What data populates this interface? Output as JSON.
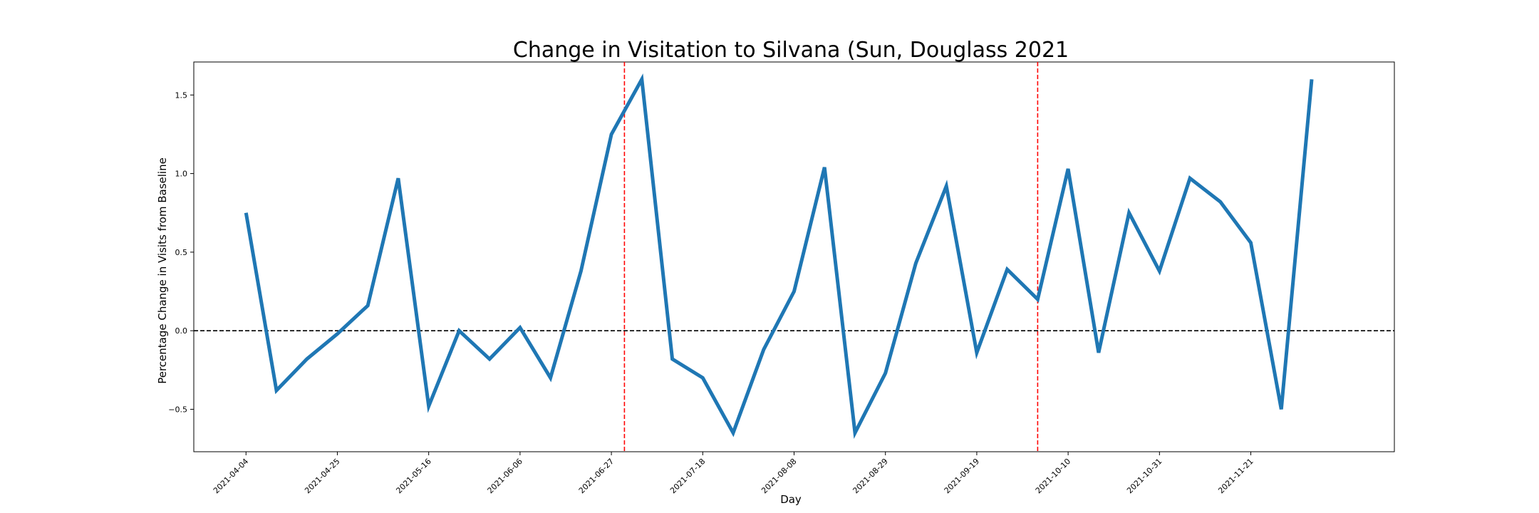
{
  "chart_data": {
    "type": "line",
    "title": "Change in Visitation to Silvana (Sun, Douglass 2021",
    "xlabel": "Day",
    "ylabel": "Percentage Change in Visits from Baseline",
    "xlim": [
      "2021-03-23",
      "2021-12-24"
    ],
    "ylim": [
      -0.77,
      1.71
    ],
    "x_ticks": [
      "2021-04-04",
      "2021-04-25",
      "2021-05-16",
      "2021-06-06",
      "2021-06-27",
      "2021-07-18",
      "2021-08-08",
      "2021-08-29",
      "2021-09-19",
      "2021-10-10",
      "2021-10-31",
      "2021-11-21"
    ],
    "y_ticks": [
      -0.5,
      0.0,
      0.5,
      1.0,
      1.5
    ],
    "y_tick_labels": [
      "−0.5",
      "0.0",
      "0.5",
      "1.0",
      "1.5"
    ],
    "grid": false,
    "series": [
      {
        "color": "#1f77b4",
        "x": [
          "2021-04-04",
          "2021-04-11",
          "2021-04-18",
          "2021-04-25",
          "2021-05-02",
          "2021-05-09",
          "2021-05-16",
          "2021-05-23",
          "2021-05-30",
          "2021-06-06",
          "2021-06-13",
          "2021-06-20",
          "2021-06-27",
          "2021-07-04",
          "2021-07-11",
          "2021-07-18",
          "2021-07-25",
          "2021-08-01",
          "2021-08-08",
          "2021-08-15",
          "2021-08-22",
          "2021-08-29",
          "2021-09-05",
          "2021-09-12",
          "2021-09-19",
          "2021-09-26",
          "2021-10-03",
          "2021-10-10",
          "2021-10-17",
          "2021-10-24",
          "2021-10-31",
          "2021-11-07",
          "2021-11-14",
          "2021-11-21",
          "2021-11-28",
          "2021-12-05"
        ],
        "y": [
          0.75,
          -0.38,
          -0.18,
          -0.02,
          0.16,
          0.97,
          -0.48,
          0.0,
          -0.18,
          0.02,
          -0.3,
          0.38,
          1.25,
          1.6,
          -0.18,
          -0.3,
          -0.65,
          -0.12,
          0.25,
          1.04,
          -0.65,
          -0.27,
          0.43,
          0.92,
          -0.14,
          0.39,
          0.2,
          1.03,
          -0.14,
          0.75,
          0.38,
          0.97,
          0.82,
          0.56,
          -0.5,
          1.6
        ]
      }
    ],
    "reference_lines": [
      {
        "axis": "y",
        "value": 0.0,
        "color": "#000000",
        "style": "dashed"
      },
      {
        "axis": "x",
        "value": "2021-06-30",
        "color": "#ff0000",
        "style": "dashed"
      },
      {
        "axis": "x",
        "value": "2021-10-03",
        "color": "#ff0000",
        "style": "dashed"
      }
    ]
  }
}
